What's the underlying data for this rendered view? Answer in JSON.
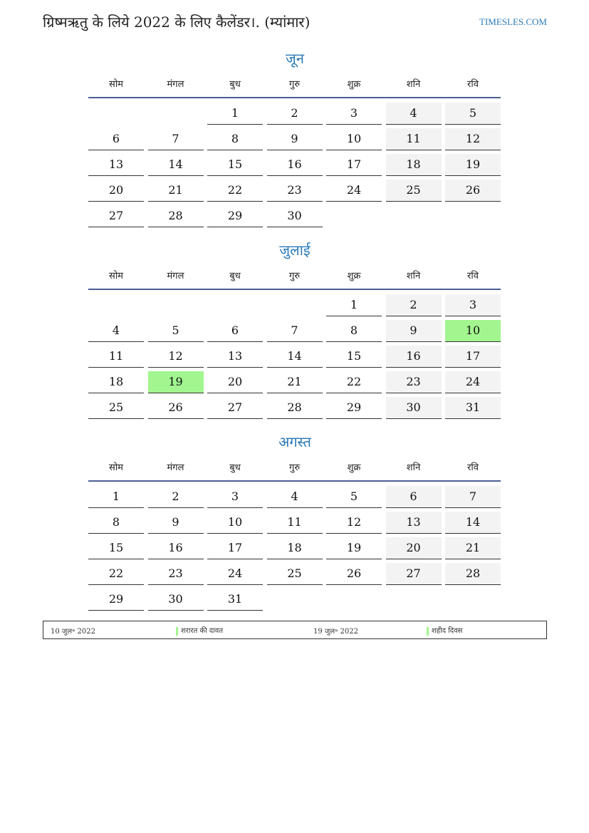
{
  "title": "ग्रिष्मऋतु के लिये 2022 के लिए कैलेंडर।. (म्यांमार)",
  "brand": "TIMESLES.COM",
  "weekdays": [
    "सोम",
    "मंगल",
    "बुध",
    "गुरु",
    "शुक्र",
    "शनि",
    "रवि"
  ],
  "colors": {
    "accent": "#2a7ab8",
    "weekend": "#f3f3f3",
    "holiday": "#a2f58f",
    "rule": "#4a5f95"
  },
  "months": [
    {
      "name": "जून",
      "weeks": [
        [
          null,
          null,
          1,
          2,
          3,
          4,
          5
        ],
        [
          6,
          7,
          8,
          9,
          10,
          11,
          12
        ],
        [
          13,
          14,
          15,
          16,
          17,
          18,
          19
        ],
        [
          20,
          21,
          22,
          23,
          24,
          25,
          26
        ],
        [
          27,
          28,
          29,
          30,
          null,
          null,
          null
        ]
      ],
      "holidays": []
    },
    {
      "name": "जुलाई",
      "weeks": [
        [
          null,
          null,
          null,
          null,
          1,
          2,
          3
        ],
        [
          4,
          5,
          6,
          7,
          8,
          9,
          10
        ],
        [
          11,
          12,
          13,
          14,
          15,
          16,
          17
        ],
        [
          18,
          19,
          20,
          21,
          22,
          23,
          24
        ],
        [
          25,
          26,
          27,
          28,
          29,
          30,
          31
        ]
      ],
      "holidays": [
        10,
        19
      ]
    },
    {
      "name": "अगस्त",
      "weeks": [
        [
          1,
          2,
          3,
          4,
          5,
          6,
          7
        ],
        [
          8,
          9,
          10,
          11,
          12,
          13,
          14
        ],
        [
          15,
          16,
          17,
          18,
          19,
          20,
          21
        ],
        [
          22,
          23,
          24,
          25,
          26,
          27,
          28
        ],
        [
          29,
          30,
          31,
          null,
          null,
          null,
          null
        ]
      ],
      "holidays": []
    }
  ],
  "legend": [
    {
      "date": "10 जुल॰ 2022",
      "name": "शरारत की दावत"
    },
    {
      "date": "19 जुल॰ 2022",
      "name": "शहीद दिवस"
    }
  ]
}
